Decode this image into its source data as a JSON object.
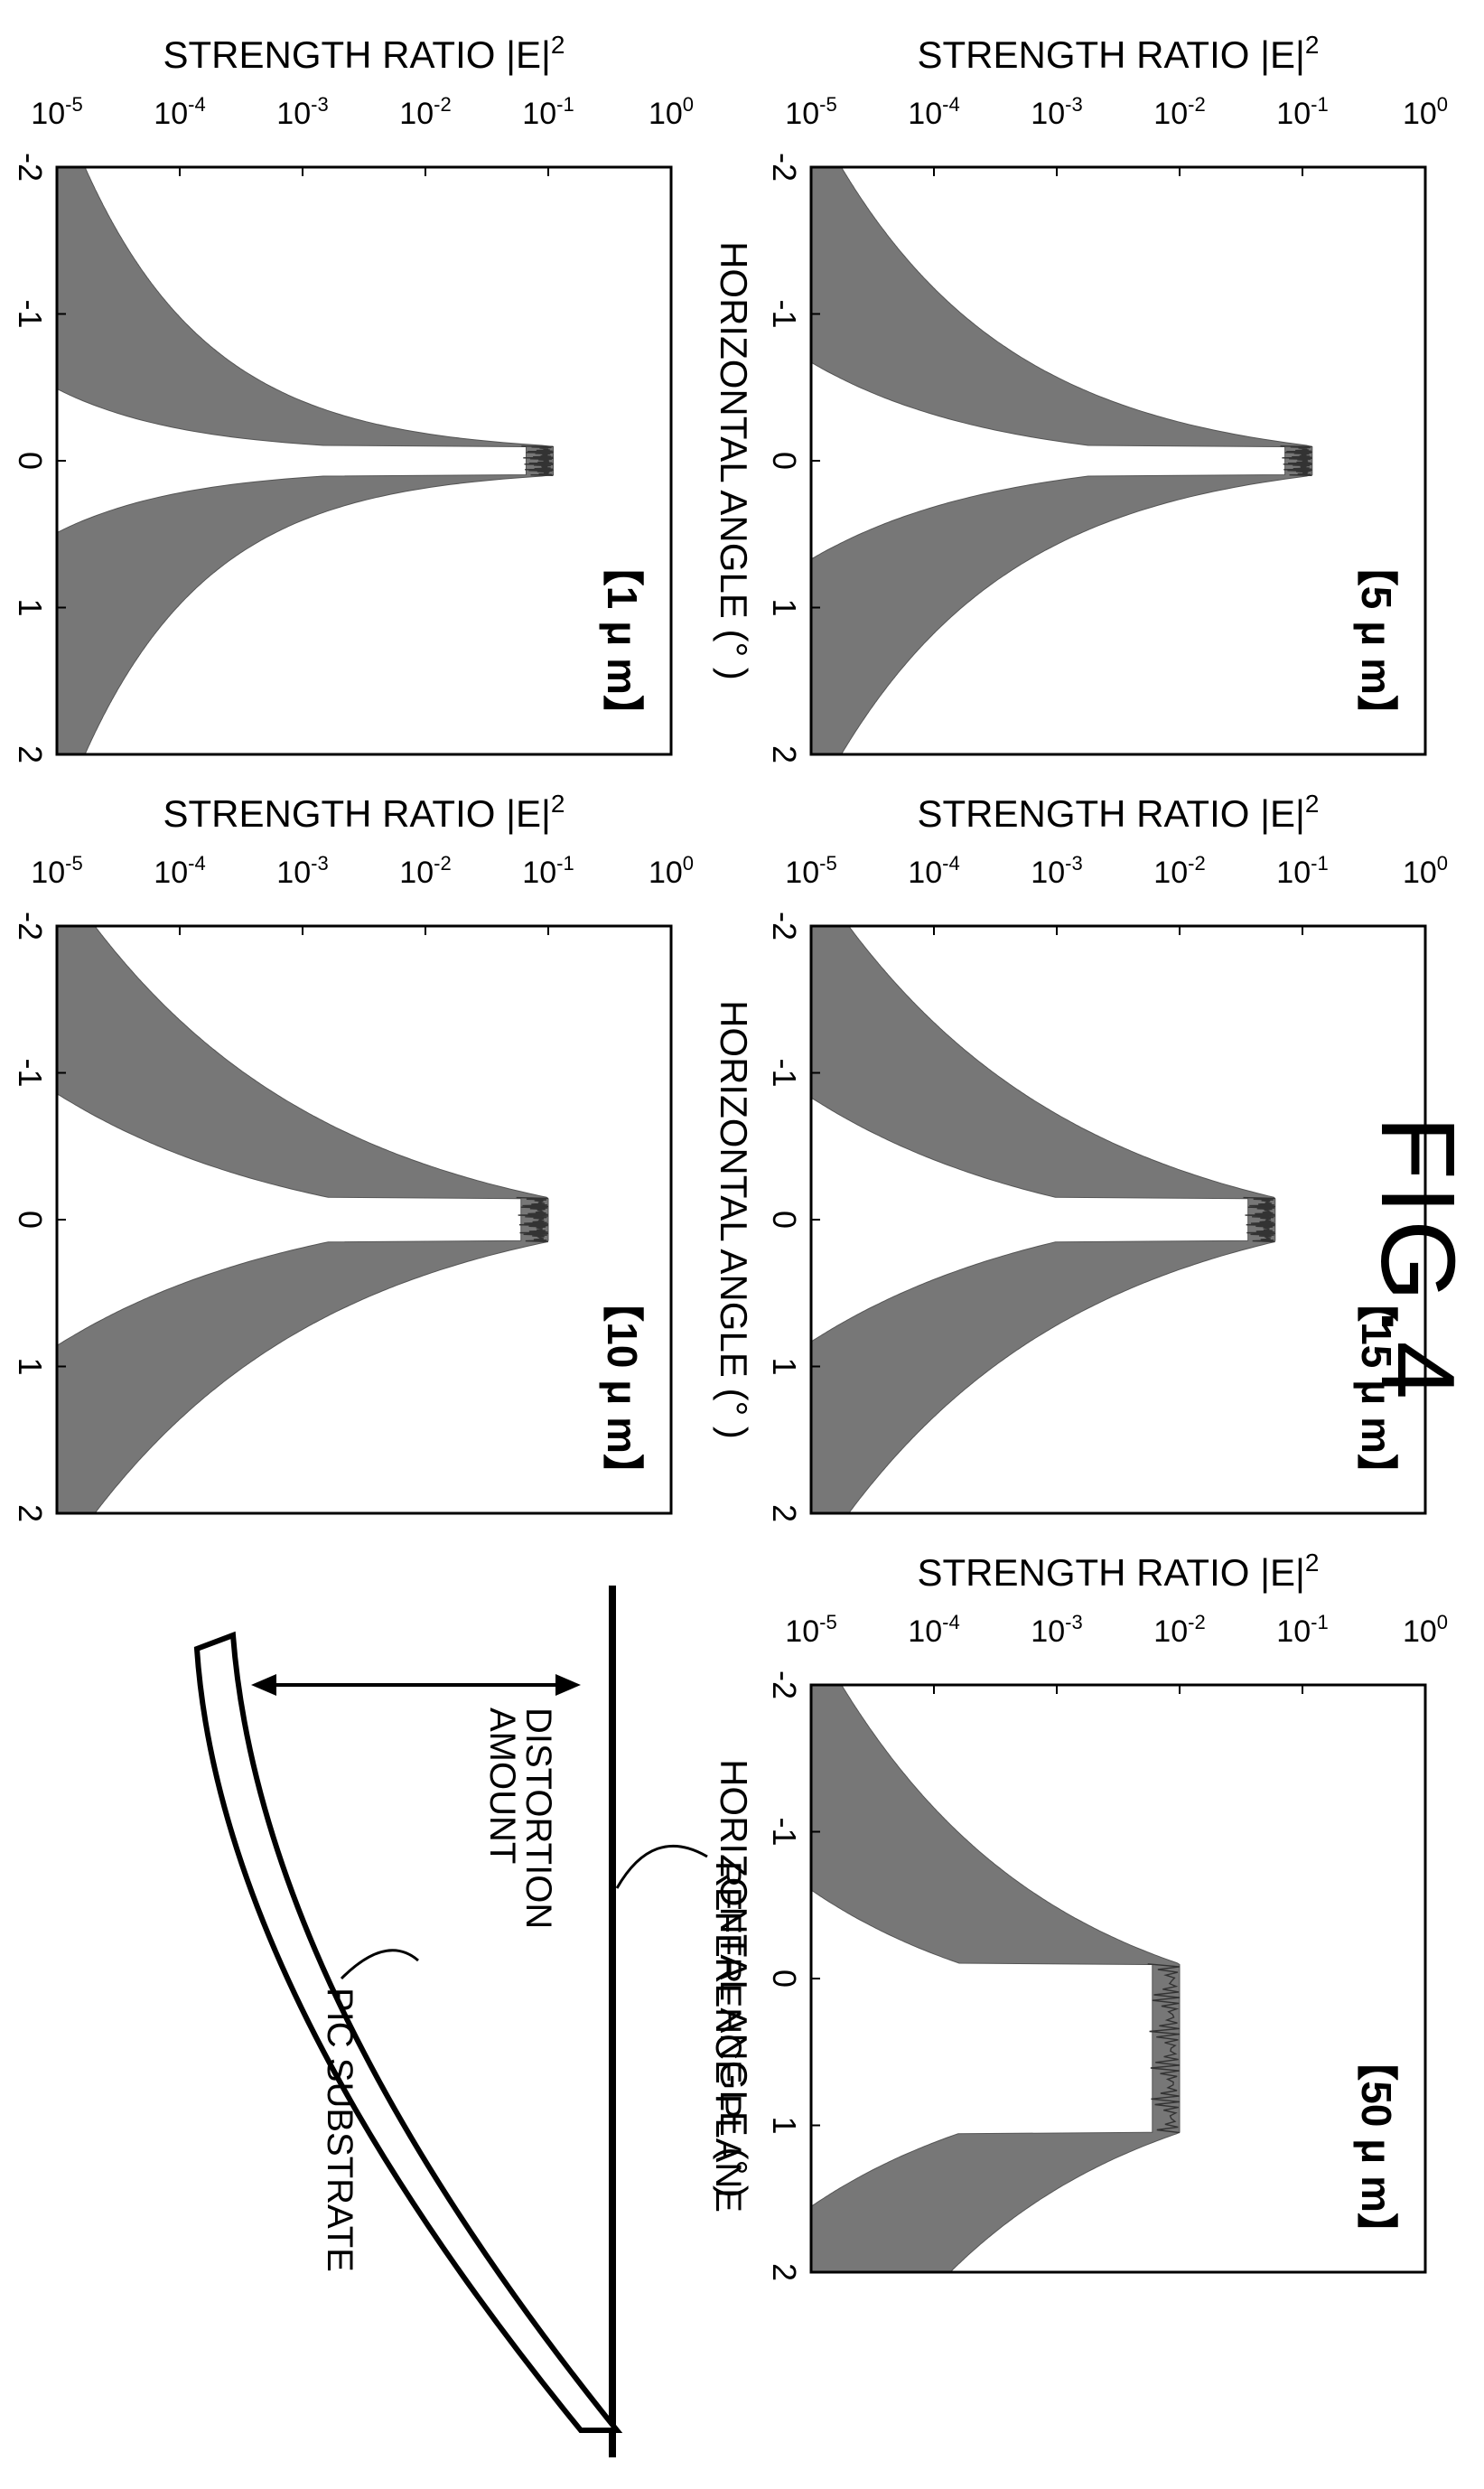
{
  "figure": {
    "title": "FIG.4",
    "diagram": {
      "distortion_label": [
        "DISTORTION",
        "AMOUNT"
      ],
      "reference_label": "REFERENCE PLANE",
      "substrate_label": "PIC SUBSTRATE"
    }
  },
  "chart_data": [
    {
      "type": "line",
      "title": "【1 μ m】",
      "xlabel": "HORIZONTAL ANGLE (° )",
      "ylabel": "STRENGTH RATIO |E|",
      "ylabel_sup": "2",
      "xticks": [
        "-2",
        "-1",
        "0",
        "1",
        "2"
      ],
      "yticks": [
        {
          "b": "10",
          "e": "-5"
        },
        {
          "b": "10",
          "e": "-4"
        },
        {
          "b": "10",
          "e": "-3"
        },
        {
          "b": "10",
          "e": "-2"
        },
        {
          "b": "10",
          "e": "-1"
        },
        {
          "b": "10",
          "e": "0"
        }
      ],
      "xlim": [
        -2,
        2
      ],
      "ylim": [
        1e-05,
        1
      ],
      "yscale": "log",
      "peak_range": [
        -0.1,
        0.1
      ],
      "peak_value": 0.11,
      "baseline_at_edge": 1.5e-05,
      "base_width": 0.05
    },
    {
      "type": "line",
      "title": "【10 μ m】",
      "xlabel": "HORIZONTAL ANGLE (° )",
      "ylabel": "STRENGTH RATIO |E|",
      "ylabel_sup": "2",
      "xticks": [
        "-2",
        "-1",
        "0",
        "1",
        "2"
      ],
      "yticks": [
        {
          "b": "10",
          "e": "-5"
        },
        {
          "b": "10",
          "e": "-4"
        },
        {
          "b": "10",
          "e": "-3"
        },
        {
          "b": "10",
          "e": "-2"
        },
        {
          "b": "10",
          "e": "-1"
        },
        {
          "b": "10",
          "e": "0"
        }
      ],
      "xlim": [
        -2,
        2
      ],
      "ylim": [
        1e-05,
        1
      ],
      "yscale": "log",
      "peak_range": [
        -0.15,
        0.15
      ],
      "peak_value": 0.1,
      "baseline_at_edge": 1.5e-05,
      "base_width": 0.35
    },
    {
      "type": "line",
      "title": "【5 μ m】",
      "xlabel": "HORIZONTAL ANGLE (° )",
      "ylabel": "STRENGTH RATIO |E|",
      "ylabel_sup": "2",
      "xticks": [
        "-2",
        "-1",
        "0",
        "1",
        "2"
      ],
      "yticks": [
        {
          "b": "10",
          "e": "-5"
        },
        {
          "b": "10",
          "e": "-4"
        },
        {
          "b": "10",
          "e": "-3"
        },
        {
          "b": "10",
          "e": "-2"
        },
        {
          "b": "10",
          "e": "-1"
        },
        {
          "b": "10",
          "e": "0"
        }
      ],
      "xlim": [
        -2,
        2
      ],
      "ylim": [
        1e-05,
        1
      ],
      "yscale": "log",
      "peak_range": [
        -0.1,
        0.1
      ],
      "peak_value": 0.12,
      "baseline_at_edge": 1.5e-05,
      "base_width": 0.15
    },
    {
      "type": "line",
      "title": "【15 μ m】",
      "xlabel": "HORIZONTAL ANGLE (° )",
      "ylabel": "STRENGTH RATIO |E|",
      "ylabel_sup": "2",
      "xticks": [
        "-2",
        "-1",
        "0",
        "1",
        "2"
      ],
      "yticks": [
        {
          "b": "10",
          "e": "-5"
        },
        {
          "b": "10",
          "e": "-4"
        },
        {
          "b": "10",
          "e": "-3"
        },
        {
          "b": "10",
          "e": "-2"
        },
        {
          "b": "10",
          "e": "-1"
        },
        {
          "b": "10",
          "e": "0"
        }
      ],
      "xlim": [
        -2,
        2
      ],
      "ylim": [
        1e-05,
        1
      ],
      "yscale": "log",
      "peak_range": [
        -0.15,
        0.15
      ],
      "peak_value": 0.06,
      "baseline_at_edge": 1.5e-05,
      "base_width": 0.4
    },
    {
      "type": "line",
      "title": "【50 μ m】",
      "xlabel": "HORIZONTAL ANGLE (° )",
      "ylabel": "STRENGTH RATIO |E|",
      "ylabel_sup": "2",
      "xticks": [
        "-2",
        "-1",
        "0",
        "1",
        "2"
      ],
      "yticks": [
        {
          "b": "10",
          "e": "-5"
        },
        {
          "b": "10",
          "e": "-4"
        },
        {
          "b": "10",
          "e": "-3"
        },
        {
          "b": "10",
          "e": "-2"
        },
        {
          "b": "10",
          "e": "-1"
        },
        {
          "b": "10",
          "e": "0"
        }
      ],
      "xlim": [
        -2,
        2
      ],
      "ylim": [
        1e-05,
        1
      ],
      "yscale": "log",
      "peak_range": [
        -0.1,
        1.05
      ],
      "peak_value": 0.01,
      "baseline_at_edge": 1.5e-05,
      "base_width": 0.5
    }
  ]
}
